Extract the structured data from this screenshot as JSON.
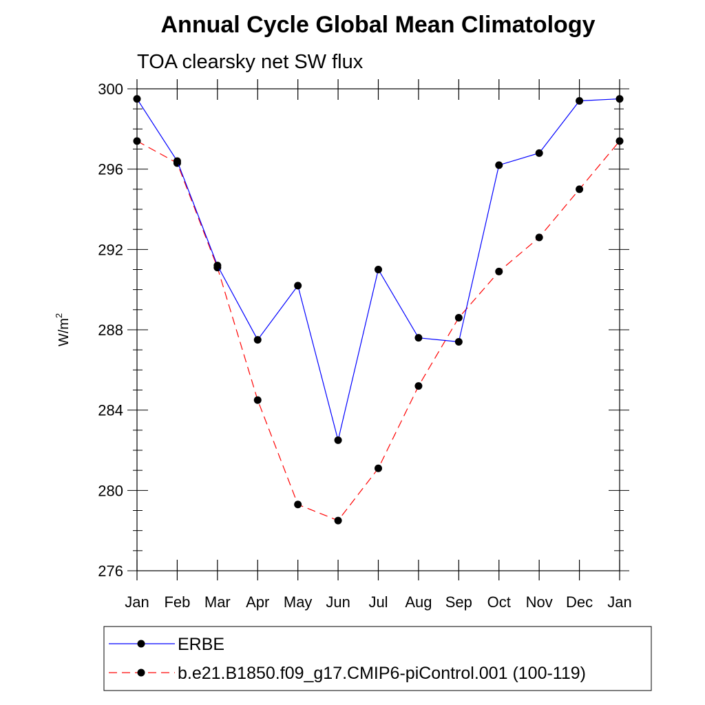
{
  "chart_data": {
    "type": "line",
    "title": "Annual Cycle Global Mean Climatology",
    "subtitle": "TOA clearsky net SW flux",
    "ylabel": "W/m",
    "ylabel_superscript": "2",
    "xlabel": "",
    "categories": [
      "Jan",
      "Feb",
      "Mar",
      "Apr",
      "May",
      "Jun",
      "Jul",
      "Aug",
      "Sep",
      "Oct",
      "Nov",
      "Dec",
      "Jan"
    ],
    "ylim": [
      276,
      300
    ],
    "yticks": [
      276,
      280,
      284,
      288,
      292,
      296,
      300
    ],
    "y_minor_step": 1,
    "grid": false,
    "legend_position": "bottom",
    "series": [
      {
        "name": "ERBE",
        "color": "#0000ff",
        "line_style": "solid",
        "marker": "filled-circle",
        "values": [
          299.5,
          296.4,
          291.2,
          287.5,
          290.2,
          282.5,
          291.0,
          287.6,
          287.4,
          296.2,
          296.8,
          299.4,
          299.5
        ]
      },
      {
        "name": "b.e21.B1850.f09_g17.CMIP6-piControl.001 (100-119)",
        "color": "#ff0000",
        "line_style": "dashed",
        "marker": "filled-circle",
        "values": [
          297.4,
          296.3,
          291.1,
          284.5,
          279.3,
          278.5,
          281.1,
          285.2,
          288.6,
          290.9,
          292.6,
          295.0,
          297.4
        ]
      }
    ]
  }
}
